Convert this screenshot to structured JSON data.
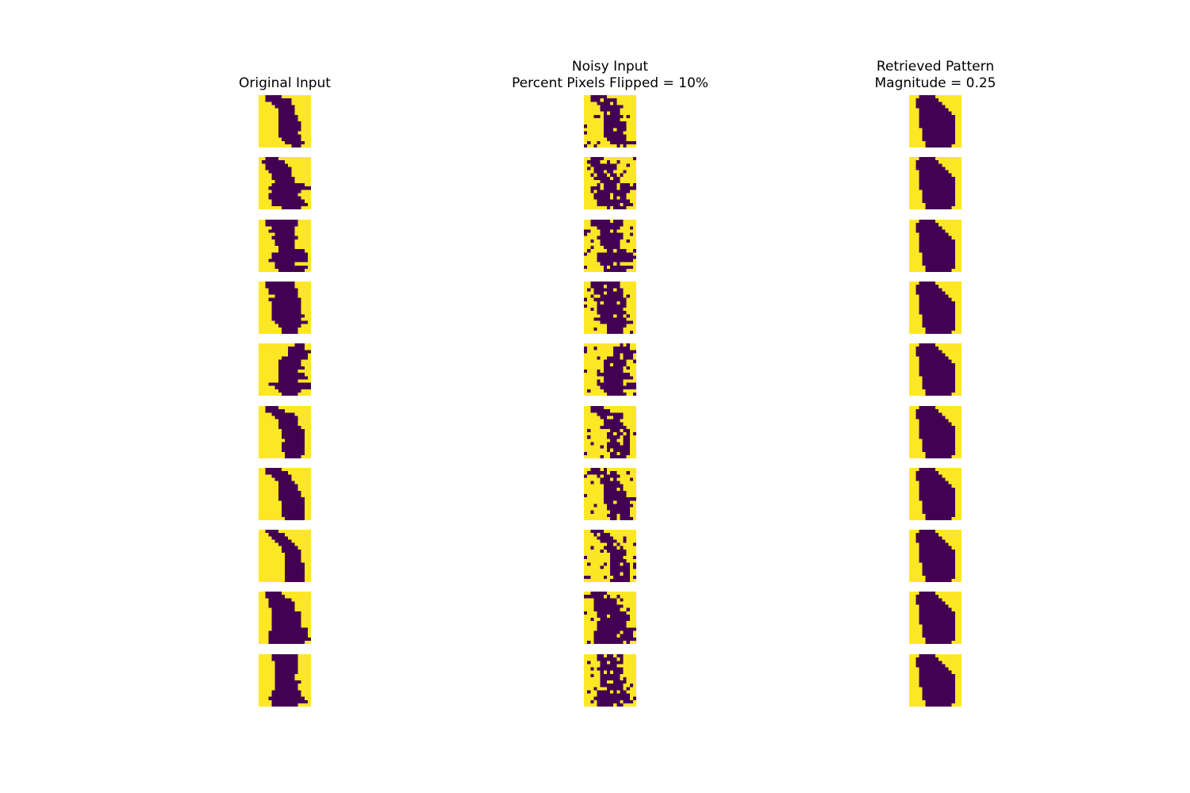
{
  "chart_data": {
    "type": "heatmap",
    "grid_size": [
      16,
      16
    ],
    "colormap": "viridis",
    "colors": {
      "low": "#440154",
      "high": "#fde725"
    },
    "columns": [
      {
        "title_lines": [
          "Original Input"
        ]
      },
      {
        "title_lines": [
          "Noisy Input",
          "Percent Pixels Flipped = 10%"
        ]
      },
      {
        "title_lines": [
          "Retrieved Pattern",
          "Magnitude = 0.25"
        ]
      }
    ],
    "row_count": 10,
    "dark_rows": {
      "original": [
        [
          [
            2,
            6
          ],
          [
            2,
            9
          ],
          [
            4,
            9
          ],
          [
            5,
            10
          ],
          [
            6,
            10
          ],
          [
            6,
            10
          ],
          [
            6,
            11
          ],
          [
            6,
            11
          ],
          [
            6,
            12
          ],
          [
            6,
            12
          ],
          [
            6,
            12
          ],
          [
            6,
            11
          ],
          [
            6,
            12
          ],
          [
            7,
            12
          ],
          [
            8,
            13
          ],
          [
            10,
            12
          ]
        ],
        [
          [
            2,
            5
          ],
          [
            1,
            7
          ],
          [
            2,
            8
          ],
          [
            2,
            9
          ],
          [
            3,
            9
          ],
          [
            4,
            9
          ],
          [
            4,
            10
          ],
          [
            5,
            10
          ],
          [
            4,
            13
          ],
          [
            3,
            15
          ],
          [
            4,
            12
          ],
          [
            3,
            11
          ],
          [
            3,
            12
          ],
          [
            4,
            13
          ],
          [
            4,
            14
          ],
          [
            7,
            12
          ]
        ],
        [
          [
            2,
            11
          ],
          [
            2,
            11
          ],
          [
            4,
            10
          ],
          [
            3,
            10
          ],
          [
            5,
            10
          ],
          [
            4,
            11
          ],
          [
            5,
            10
          ],
          [
            5,
            10
          ],
          [
            6,
            10
          ],
          [
            6,
            13
          ],
          [
            4,
            14
          ],
          [
            4,
            14
          ],
          [
            3,
            14
          ],
          [
            5,
            10
          ],
          [
            5,
            14
          ],
          [
            6,
            13
          ]
        ],
        [
          [
            2,
            10
          ],
          [
            2,
            10
          ],
          [
            3,
            11
          ],
          [
            3,
            11
          ],
          [
            5,
            11
          ],
          [
            3,
            12
          ],
          [
            4,
            12
          ],
          [
            4,
            12
          ],
          [
            4,
            12
          ],
          [
            4,
            12
          ],
          [
            4,
            13
          ],
          [
            4,
            12
          ],
          [
            5,
            14
          ],
          [
            6,
            12
          ],
          [
            7,
            11
          ],
          [
            7,
            11
          ]
        ],
        [
          [
            11,
            13
          ],
          [
            9,
            13
          ],
          [
            9,
            15
          ],
          [
            9,
            14
          ],
          [
            7,
            14
          ],
          [
            6,
            12
          ],
          [
            6,
            12
          ],
          [
            6,
            13
          ],
          [
            6,
            11
          ],
          [
            6,
            13
          ],
          [
            6,
            14
          ],
          [
            6,
            11
          ],
          [
            3,
            15
          ],
          [
            5,
            15
          ],
          [
            6,
            12
          ],
          [
            7,
            11
          ]
        ],
        [
          [
            2,
            5
          ],
          [
            2,
            7
          ],
          [
            4,
            10
          ],
          [
            5,
            11
          ],
          [
            6,
            11
          ],
          [
            6,
            11
          ],
          [
            6,
            12
          ],
          [
            7,
            13
          ],
          [
            7,
            13
          ],
          [
            7,
            13
          ],
          [
            8,
            13
          ],
          [
            7,
            13
          ],
          [
            7,
            13
          ],
          [
            7,
            13
          ],
          [
            8,
            13
          ],
          [
            8,
            12
          ]
        ],
        [
          [
            2,
            6
          ],
          [
            2,
            8
          ],
          [
            4,
            9
          ],
          [
            5,
            9
          ],
          [
            6,
            10
          ],
          [
            6,
            11
          ],
          [
            6,
            11
          ],
          [
            6,
            12
          ],
          [
            6,
            12
          ],
          [
            6,
            13
          ],
          [
            7,
            13
          ],
          [
            7,
            13
          ],
          [
            7,
            13
          ],
          [
            7,
            13
          ],
          [
            7,
            13
          ],
          [
            8,
            13
          ]
        ],
        [
          [
            2,
            5
          ],
          [
            3,
            7
          ],
          [
            4,
            8
          ],
          [
            5,
            9
          ],
          [
            6,
            10
          ],
          [
            7,
            11
          ],
          [
            7,
            12
          ],
          [
            8,
            12
          ],
          [
            8,
            12
          ],
          [
            8,
            12
          ],
          [
            8,
            13
          ],
          [
            8,
            13
          ],
          [
            8,
            13
          ],
          [
            8,
            13
          ],
          [
            8,
            13
          ],
          [
            8,
            13
          ]
        ],
        [
          [
            2,
            6
          ],
          [
            2,
            7
          ],
          [
            3,
            9
          ],
          [
            3,
            10
          ],
          [
            3,
            10
          ],
          [
            4,
            10
          ],
          [
            4,
            12
          ],
          [
            4,
            12
          ],
          [
            4,
            12
          ],
          [
            4,
            12
          ],
          [
            4,
            12
          ],
          [
            4,
            14
          ],
          [
            3,
            14
          ],
          [
            3,
            14
          ],
          [
            3,
            15
          ],
          [
            3,
            13
          ]
        ],
        [
          [
            4,
            11
          ],
          [
            4,
            11
          ],
          [
            5,
            11
          ],
          [
            5,
            11
          ],
          [
            5,
            11
          ],
          [
            5,
            11
          ],
          [
            5,
            10
          ],
          [
            5,
            10
          ],
          [
            5,
            12
          ],
          [
            5,
            11
          ],
          [
            5,
            11
          ],
          [
            4,
            12
          ],
          [
            4,
            12
          ],
          [
            3,
            13
          ],
          [
            4,
            14
          ],
          [
            4,
            11
          ]
        ]
      ],
      "retrieved": [
        [
          [
            3,
            7
          ],
          [
            2,
            8
          ],
          [
            2,
            9
          ],
          [
            2,
            10
          ],
          [
            3,
            11
          ],
          [
            3,
            12
          ],
          [
            3,
            13
          ],
          [
            3,
            13
          ],
          [
            3,
            13
          ],
          [
            3,
            13
          ],
          [
            4,
            13
          ],
          [
            4,
            13
          ],
          [
            4,
            13
          ],
          [
            4,
            13
          ],
          [
            5,
            13
          ],
          [
            5,
            12
          ]
        ],
        [
          [
            3,
            7
          ],
          [
            2,
            8
          ],
          [
            2,
            9
          ],
          [
            2,
            10
          ],
          [
            3,
            11
          ],
          [
            3,
            12
          ],
          [
            3,
            13
          ],
          [
            3,
            13
          ],
          [
            3,
            13
          ],
          [
            3,
            13
          ],
          [
            4,
            13
          ],
          [
            4,
            13
          ],
          [
            4,
            13
          ],
          [
            4,
            13
          ],
          [
            5,
            13
          ],
          [
            5,
            12
          ]
        ],
        [
          [
            3,
            7
          ],
          [
            2,
            8
          ],
          [
            2,
            9
          ],
          [
            2,
            10
          ],
          [
            3,
            11
          ],
          [
            3,
            12
          ],
          [
            3,
            13
          ],
          [
            3,
            13
          ],
          [
            3,
            13
          ],
          [
            3,
            13
          ],
          [
            4,
            13
          ],
          [
            4,
            13
          ],
          [
            4,
            13
          ],
          [
            4,
            13
          ],
          [
            5,
            13
          ],
          [
            5,
            12
          ]
        ],
        [
          [
            3,
            7
          ],
          [
            2,
            8
          ],
          [
            2,
            9
          ],
          [
            2,
            10
          ],
          [
            3,
            11
          ],
          [
            3,
            12
          ],
          [
            3,
            13
          ],
          [
            3,
            13
          ],
          [
            3,
            13
          ],
          [
            3,
            13
          ],
          [
            4,
            13
          ],
          [
            4,
            13
          ],
          [
            4,
            13
          ],
          [
            4,
            13
          ],
          [
            5,
            13
          ],
          [
            5,
            12
          ]
        ],
        [
          [
            3,
            7
          ],
          [
            2,
            8
          ],
          [
            2,
            9
          ],
          [
            2,
            10
          ],
          [
            3,
            11
          ],
          [
            3,
            12
          ],
          [
            3,
            13
          ],
          [
            3,
            13
          ],
          [
            3,
            13
          ],
          [
            3,
            13
          ],
          [
            4,
            13
          ],
          [
            4,
            13
          ],
          [
            4,
            13
          ],
          [
            4,
            13
          ],
          [
            5,
            13
          ],
          [
            5,
            12
          ]
        ],
        [
          [
            3,
            7
          ],
          [
            2,
            8
          ],
          [
            2,
            9
          ],
          [
            2,
            10
          ],
          [
            3,
            11
          ],
          [
            3,
            12
          ],
          [
            3,
            13
          ],
          [
            3,
            13
          ],
          [
            3,
            13
          ],
          [
            3,
            13
          ],
          [
            4,
            13
          ],
          [
            4,
            13
          ],
          [
            4,
            13
          ],
          [
            4,
            13
          ],
          [
            5,
            13
          ],
          [
            5,
            12
          ]
        ],
        [
          [
            3,
            7
          ],
          [
            2,
            8
          ],
          [
            2,
            9
          ],
          [
            2,
            10
          ],
          [
            3,
            11
          ],
          [
            3,
            12
          ],
          [
            3,
            13
          ],
          [
            3,
            13
          ],
          [
            3,
            13
          ],
          [
            3,
            13
          ],
          [
            4,
            13
          ],
          [
            4,
            13
          ],
          [
            4,
            13
          ],
          [
            4,
            13
          ],
          [
            5,
            13
          ],
          [
            5,
            12
          ]
        ],
        [
          [
            3,
            7
          ],
          [
            2,
            8
          ],
          [
            2,
            9
          ],
          [
            2,
            10
          ],
          [
            3,
            11
          ],
          [
            3,
            12
          ],
          [
            3,
            13
          ],
          [
            3,
            13
          ],
          [
            3,
            13
          ],
          [
            3,
            13
          ],
          [
            4,
            13
          ],
          [
            4,
            13
          ],
          [
            4,
            13
          ],
          [
            4,
            13
          ],
          [
            5,
            13
          ],
          [
            5,
            12
          ]
        ],
        [
          [
            3,
            7
          ],
          [
            2,
            8
          ],
          [
            2,
            9
          ],
          [
            2,
            10
          ],
          [
            3,
            11
          ],
          [
            3,
            12
          ],
          [
            3,
            13
          ],
          [
            3,
            13
          ],
          [
            3,
            13
          ],
          [
            3,
            13
          ],
          [
            4,
            13
          ],
          [
            4,
            13
          ],
          [
            4,
            13
          ],
          [
            4,
            13
          ],
          [
            5,
            13
          ],
          [
            5,
            12
          ]
        ],
        [
          [
            3,
            7
          ],
          [
            2,
            8
          ],
          [
            2,
            9
          ],
          [
            2,
            10
          ],
          [
            3,
            11
          ],
          [
            3,
            12
          ],
          [
            3,
            13
          ],
          [
            3,
            13
          ],
          [
            3,
            13
          ],
          [
            3,
            13
          ],
          [
            4,
            13
          ],
          [
            4,
            13
          ],
          [
            4,
            13
          ],
          [
            4,
            13
          ],
          [
            5,
            13
          ],
          [
            5,
            12
          ]
        ]
      ]
    },
    "noise_fraction": 0.1
  }
}
